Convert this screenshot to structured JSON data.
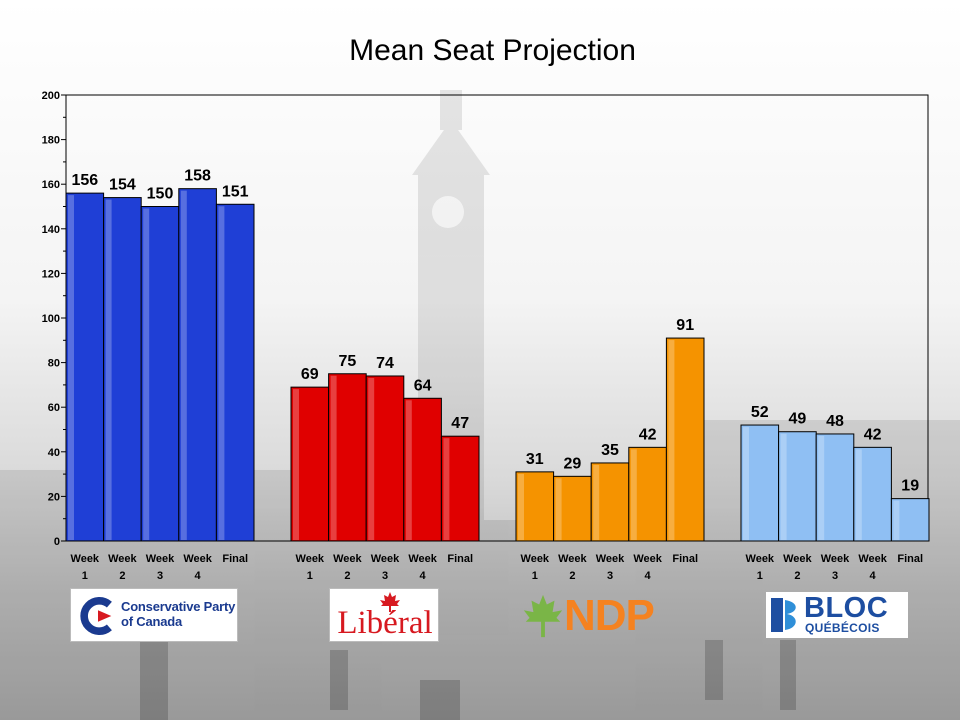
{
  "title": "Mean Seat Projection",
  "colors": {
    "conservative": "#1f3fd6",
    "liberal": "#e00000",
    "ndp": "#f59300",
    "bloc": "#8fbff3"
  },
  "chart_data": {
    "type": "bar",
    "title": "Mean Seat Projection",
    "xlabel": "",
    "ylabel": "",
    "ylim": [
      0,
      200
    ],
    "yticks": [
      "0",
      "20",
      "40",
      "60",
      "80",
      "100",
      "120",
      "140",
      "160",
      "180",
      "200"
    ],
    "categories": [
      {
        "line1": "Week",
        "line2": "1"
      },
      {
        "line1": "Week",
        "line2": "2"
      },
      {
        "line1": "Week",
        "line2": "3"
      },
      {
        "line1": "Week",
        "line2": "4"
      },
      {
        "line1": "Final",
        "line2": ""
      }
    ],
    "series": [
      {
        "party": "conservative",
        "values": [
          156,
          154,
          150,
          158,
          151
        ]
      },
      {
        "party": "liberal",
        "values": [
          69,
          75,
          74,
          64,
          47
        ]
      },
      {
        "party": "ndp",
        "values": [
          31,
          29,
          35,
          42,
          91
        ]
      },
      {
        "party": "bloc",
        "values": [
          52,
          49,
          48,
          42,
          19
        ]
      }
    ]
  },
  "logos": {
    "conservative": {
      "line1": "Conservative Party",
      "line2": "of Canada",
      "icon": "conservative-c-icon"
    },
    "liberal": {
      "text": "Libéral",
      "icon": "maple-leaf-icon"
    },
    "ndp": {
      "text": "NDP",
      "icon": "maple-leaf-icon"
    },
    "bloc": {
      "line1": "BLOC",
      "line2": "QUÉBÉCOIS",
      "icon": "bloc-fleur-icon"
    }
  }
}
